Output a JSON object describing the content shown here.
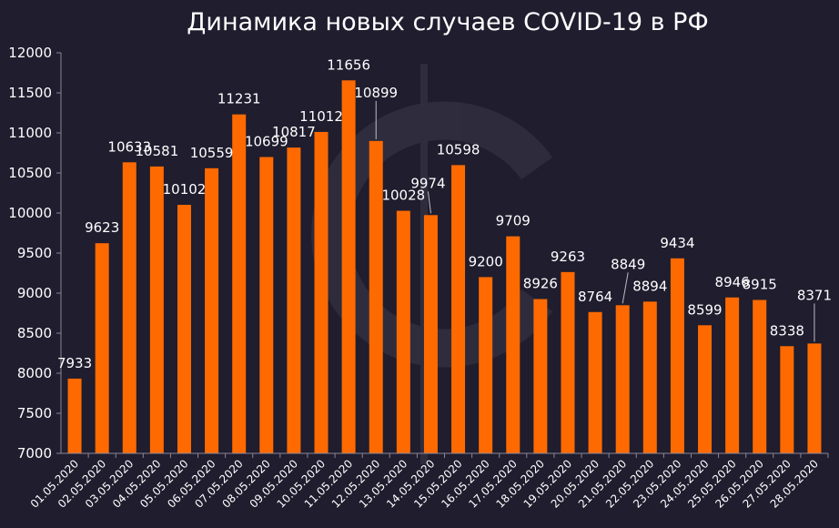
{
  "chart_data": {
    "type": "bar",
    "title": "Динамика новых случаев COVID-19 в РФ",
    "xlabel": "",
    "ylabel": "",
    "ylim": [
      7000,
      12000
    ],
    "ytick_step": 500,
    "ytick_labels": [
      "7000",
      "7500",
      "8000",
      "8500",
      "9000",
      "9500",
      "10000",
      "10500",
      "11000",
      "11500",
      "12000"
    ],
    "grid": false,
    "legend": "none",
    "bar_color": "#ff6a00",
    "categories": [
      "01.05.2020",
      "02.05.2020",
      "03.05.2020",
      "04.05.2020",
      "05.05.2020",
      "06.05.2020",
      "07.05.2020",
      "08.05.2020",
      "09.05.2020",
      "10.05.2020",
      "11.05.2020",
      "12.05.2020",
      "13.05.2020",
      "14.05.2020",
      "15.05.2020",
      "16.05.2020",
      "17.05.2020",
      "18.05.2020",
      "19.05.2020",
      "20.05.2020",
      "21.05.2020",
      "22.05.2020",
      "23.05.2020",
      "24.05.2020",
      "25.05.2020",
      "26.05.2020",
      "27.05.2020",
      "28.05.2020"
    ],
    "values": [
      7933,
      9623,
      10633,
      10581,
      10102,
      10559,
      11231,
      10699,
      10817,
      11012,
      11656,
      10899,
      10028,
      9974,
      10598,
      9200,
      9709,
      8926,
      9263,
      8764,
      8849,
      8894,
      9434,
      8599,
      8946,
      8915,
      8338,
      8371
    ],
    "data_labels": [
      "7933",
      "9623",
      "10633",
      "10581",
      "10102",
      "10559",
      "11231",
      "10699",
      "10817",
      "11012",
      "11656",
      "10899",
      "10028",
      "9974",
      "10598",
      "9200",
      "9709",
      "8926",
      "9263",
      "8764",
      "8849",
      "8894",
      "9434",
      "8599",
      "8946",
      "8915",
      "8338",
      "8371"
    ]
  }
}
